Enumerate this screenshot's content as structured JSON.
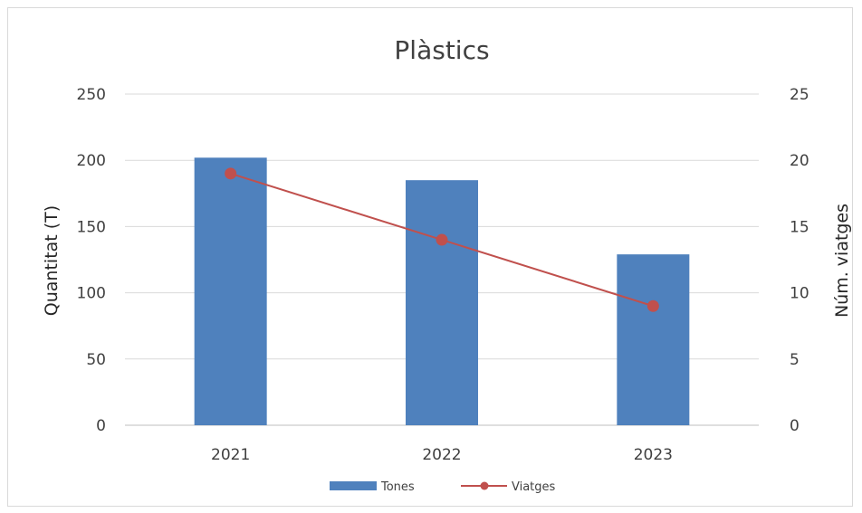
{
  "chart_data": {
    "type": "bar",
    "title": "Plàstics",
    "categories": [
      "2021",
      "2022",
      "2023"
    ],
    "series": [
      {
        "name": "Tones",
        "type": "bar",
        "axis": "left",
        "values": [
          202,
          185,
          129
        ],
        "color": "#4f81bd"
      },
      {
        "name": "Viatges",
        "type": "line",
        "axis": "right",
        "values": [
          19,
          14,
          9
        ],
        "color": "#c0504d"
      }
    ],
    "ylabel": "Quantitat (T)",
    "y2label": "Núm. viatges",
    "ylim": [
      0,
      250
    ],
    "y2lim": [
      0,
      25
    ],
    "yticks": [
      "0",
      "50",
      "100",
      "150",
      "200",
      "250"
    ],
    "y2ticks": [
      "0",
      "5",
      "10",
      "15",
      "20",
      "25"
    ],
    "grid": true,
    "legend_position": "bottom"
  }
}
